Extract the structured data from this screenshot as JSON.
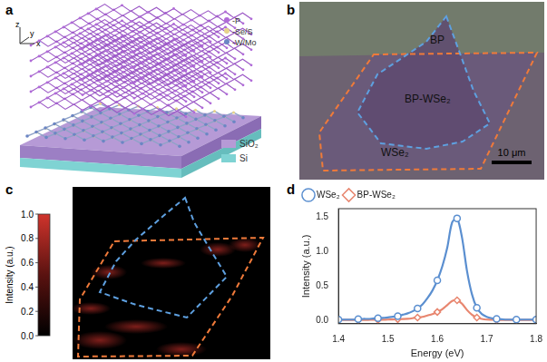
{
  "panels": {
    "a": {
      "label": "a",
      "axes": [
        "z",
        "y",
        "x"
      ],
      "atoms": [
        "-P",
        "-Se/S",
        "-W/Mo"
      ],
      "layers": [
        "SiO₂",
        "Si"
      ]
    },
    "b": {
      "label": "b",
      "regions": [
        "BP",
        "BP-WSe₂",
        "WSe₂"
      ],
      "scale_bar": "10 μm"
    },
    "c": {
      "label": "c",
      "colorbar": {
        "title": "Intensity (a.u.)",
        "range": [
          0,
          1
        ],
        "ticks": [
          {
            "value": 0,
            "label": "0.0"
          },
          0.2,
          0.4,
          0.6,
          0.8,
          {
            "value": 1,
            "label": "1.0"
          }
        ]
      }
    },
    "d": {
      "label": "d"
    }
  },
  "chart_data": {
    "type": "line",
    "x_label": "Energy (eV)",
    "y_label": "Intensity (a.u.)",
    "x": [
      1.4,
      1.41,
      1.42,
      1.43,
      1.44,
      1.45,
      1.46,
      1.47,
      1.48,
      1.49,
      1.5,
      1.51,
      1.52,
      1.53,
      1.54,
      1.55,
      1.56,
      1.57,
      1.58,
      1.59,
      1.6,
      1.61,
      1.62,
      1.63,
      1.64,
      1.65,
      1.66,
      1.67,
      1.68,
      1.69,
      1.7,
      1.71,
      1.72,
      1.73,
      1.74,
      1.75,
      1.76,
      1.77,
      1.78,
      1.79,
      1.8
    ],
    "series": [
      {
        "name": "WSe₂",
        "color": "#5b8fd0",
        "marker": "circle",
        "values": [
          0.01,
          0.01,
          0.01,
          0.01,
          0.015,
          0.02,
          0.02,
          0.025,
          0.03,
          0.035,
          0.04,
          0.05,
          0.06,
          0.08,
          0.1,
          0.13,
          0.17,
          0.23,
          0.32,
          0.43,
          0.58,
          0.78,
          1.05,
          1.42,
          1.48,
          1.2,
          0.72,
          0.38,
          0.18,
          0.09,
          0.05,
          0.03,
          0.02,
          0.015,
          0.01,
          0.01,
          0.01,
          0.01,
          0.01,
          0.01,
          0.01
        ]
      },
      {
        "name": "BP-WSe₂",
        "color": "#e8866f",
        "marker": "diamond",
        "values": [
          0.005,
          0.005,
          0.005,
          0.005,
          0.005,
          0.005,
          0.006,
          0.007,
          0.008,
          0.009,
          0.01,
          0.012,
          0.015,
          0.018,
          0.022,
          0.03,
          0.04,
          0.05,
          0.07,
          0.09,
          0.12,
          0.16,
          0.22,
          0.28,
          0.29,
          0.24,
          0.15,
          0.08,
          0.04,
          0.02,
          0.01,
          0.008,
          0.006,
          0.005,
          0.005,
          0.005,
          0.005,
          0.005,
          0.005,
          0.005,
          0.005
        ]
      }
    ],
    "xlim": [
      1.4,
      1.8
    ],
    "xticks": [
      1.4,
      1.5,
      1.6,
      1.7,
      1.8
    ],
    "ylim": [
      -0.05,
      1.62
    ],
    "yticks": [
      {
        "value": 0,
        "label": "0.0"
      },
      0.5,
      {
        "value": 1,
        "label": "1.0"
      },
      1.5
    ],
    "grid": false,
    "legend": "upper left"
  }
}
